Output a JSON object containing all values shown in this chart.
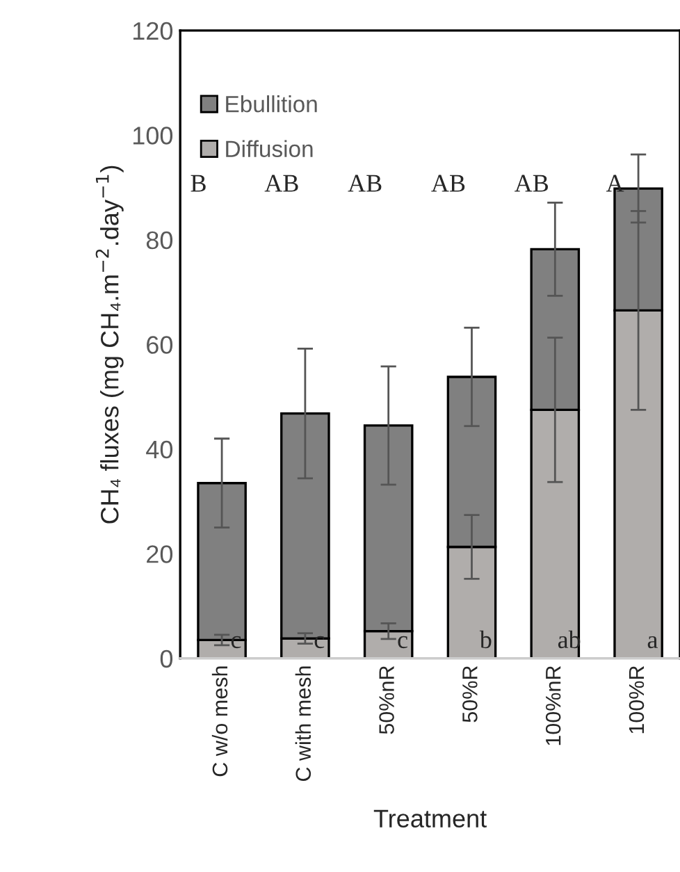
{
  "chart_data": {
    "type": "bar",
    "stacked": true,
    "xlabel": "Treatment",
    "ylabel": "CH₄ fluxes (mg CH₄.m$^{−2}$.day$^{−1}$)",
    "categories": [
      "C w/o mesh",
      "C with mesh",
      "50%nR",
      "50%R",
      "100%nR",
      "100%R"
    ],
    "series": [
      {
        "name": "Diffusion",
        "color": "#b0adab",
        "values": [
          3.5,
          3.8,
          5.2,
          21.3,
          47.5,
          66.5
        ],
        "errors": [
          1,
          1,
          1.5,
          6.1,
          13.8,
          19
        ]
      },
      {
        "name": "Ebullition",
        "color": "#808080",
        "values": [
          30,
          43,
          39.3,
          32.5,
          30.7,
          23.3
        ],
        "errors": [
          8.5,
          12.4,
          11.3,
          9.4,
          8.9,
          6.5
        ]
      }
    ],
    "ylim": [
      0,
      120
    ],
    "yticks": [
      0,
      20,
      40,
      60,
      80,
      100,
      120
    ],
    "grid": false,
    "legend": "top left",
    "annotations": [
      "B",
      "AB",
      "AB",
      "AB",
      "AB",
      "A",
      "c",
      "c",
      "c",
      "b",
      "ab",
      "a"
    ]
  }
}
